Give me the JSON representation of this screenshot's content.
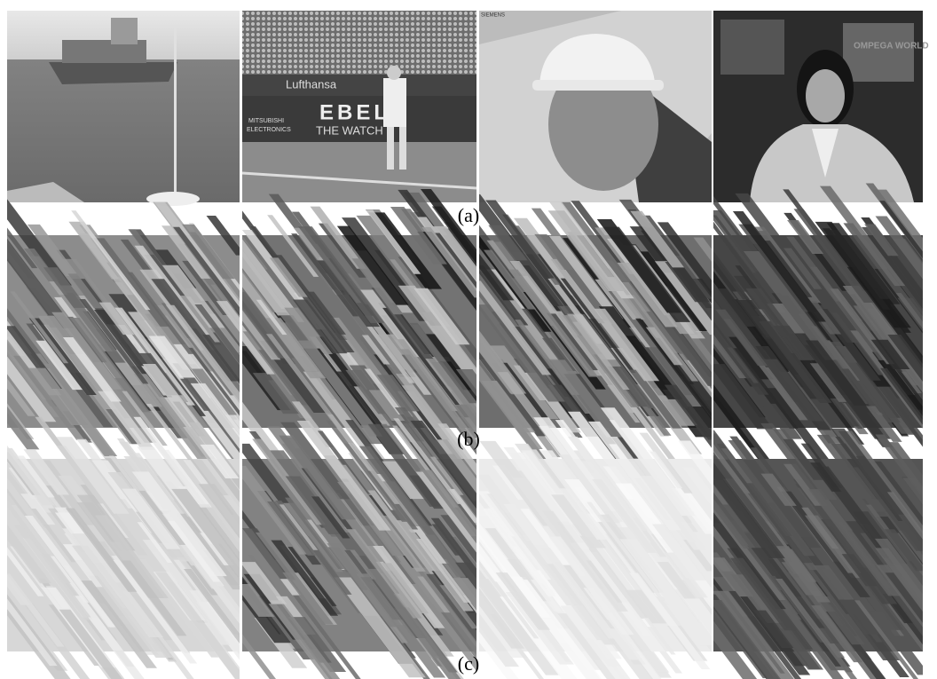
{
  "figure": {
    "rows": [
      {
        "caption": "(a)"
      },
      {
        "caption": "(b)"
      },
      {
        "caption": "(c)"
      }
    ],
    "scene_text": {
      "banner_1": "Lufthansa",
      "banner_2": "EBEL",
      "banner_3": "THE WATCH",
      "banner_4": "MITSUBISHI",
      "banner_5": "ELECTRONICS",
      "brand": "SIEMENS",
      "screen": "OMPEGA WORLD"
    }
  }
}
